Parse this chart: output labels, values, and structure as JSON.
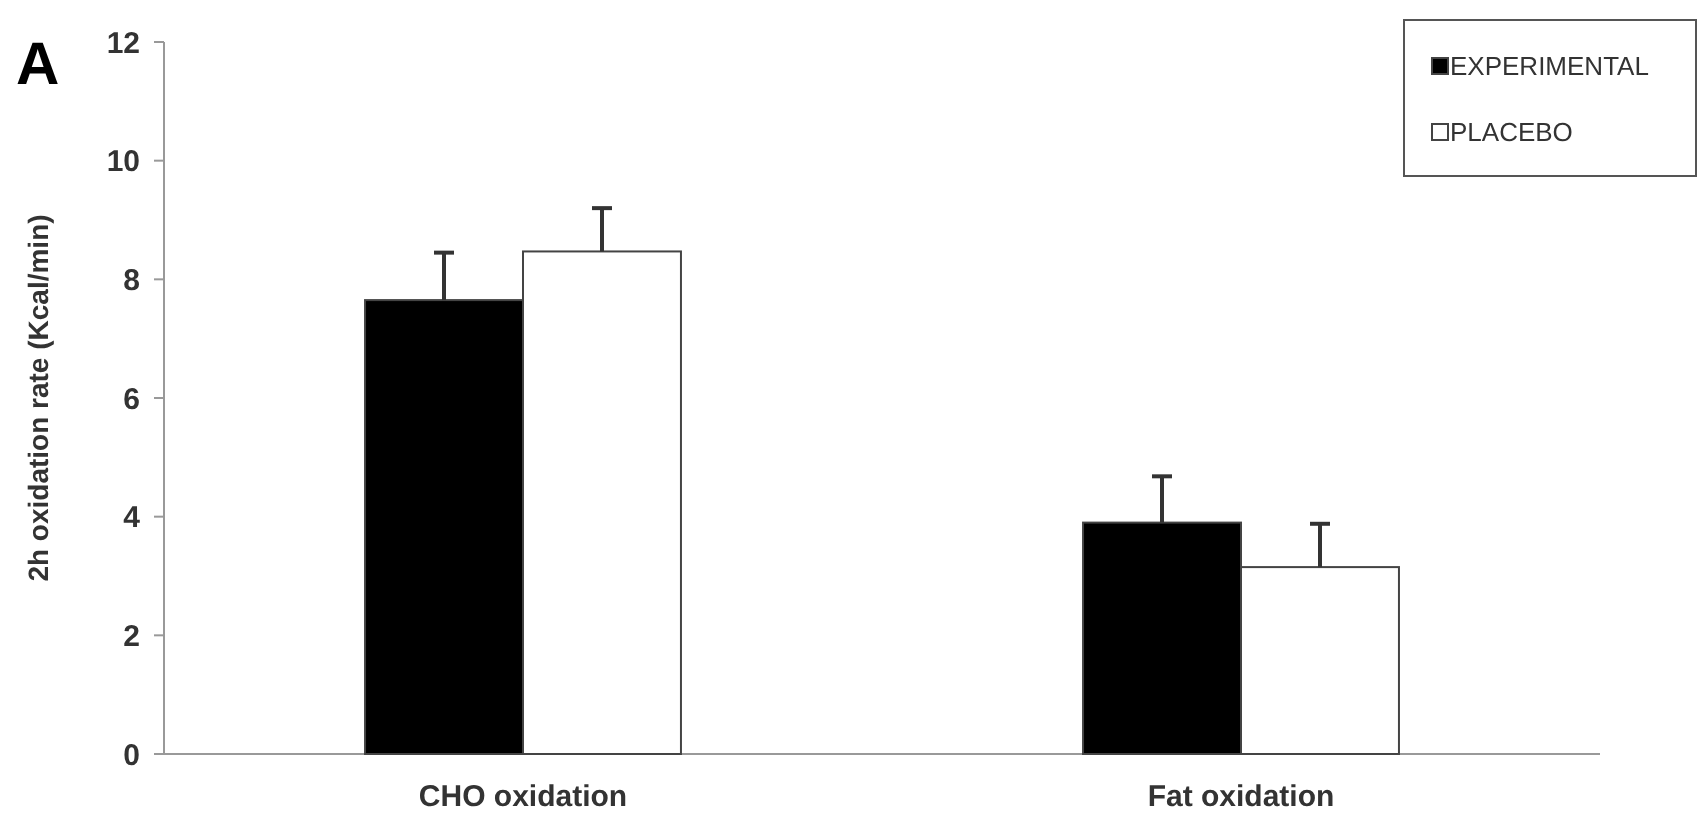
{
  "chart_data": {
    "type": "bar",
    "title": "A",
    "ylabel": "2h oxidation rate (Kcal/min)",
    "categories": [
      "CHO oxidation",
      "Fat oxidation"
    ],
    "series": [
      {
        "name": "EXPERIMENTAL",
        "color": "#000000",
        "values": [
          7.65,
          3.9
        ],
        "errors": [
          [
            7.65,
            8.45
          ],
          [
            3.9,
            4.68
          ]
        ]
      },
      {
        "name": "PLACEBO",
        "color": "#ffffff",
        "values": [
          8.47,
          3.15
        ],
        "errors": [
          [
            8.47,
            9.2
          ],
          [
            3.15,
            3.88
          ]
        ]
      }
    ],
    "ylim": [
      0,
      12
    ],
    "yticks": [
      0,
      2,
      4,
      6,
      8,
      10,
      12
    ],
    "grid": false,
    "legend": "top right"
  }
}
